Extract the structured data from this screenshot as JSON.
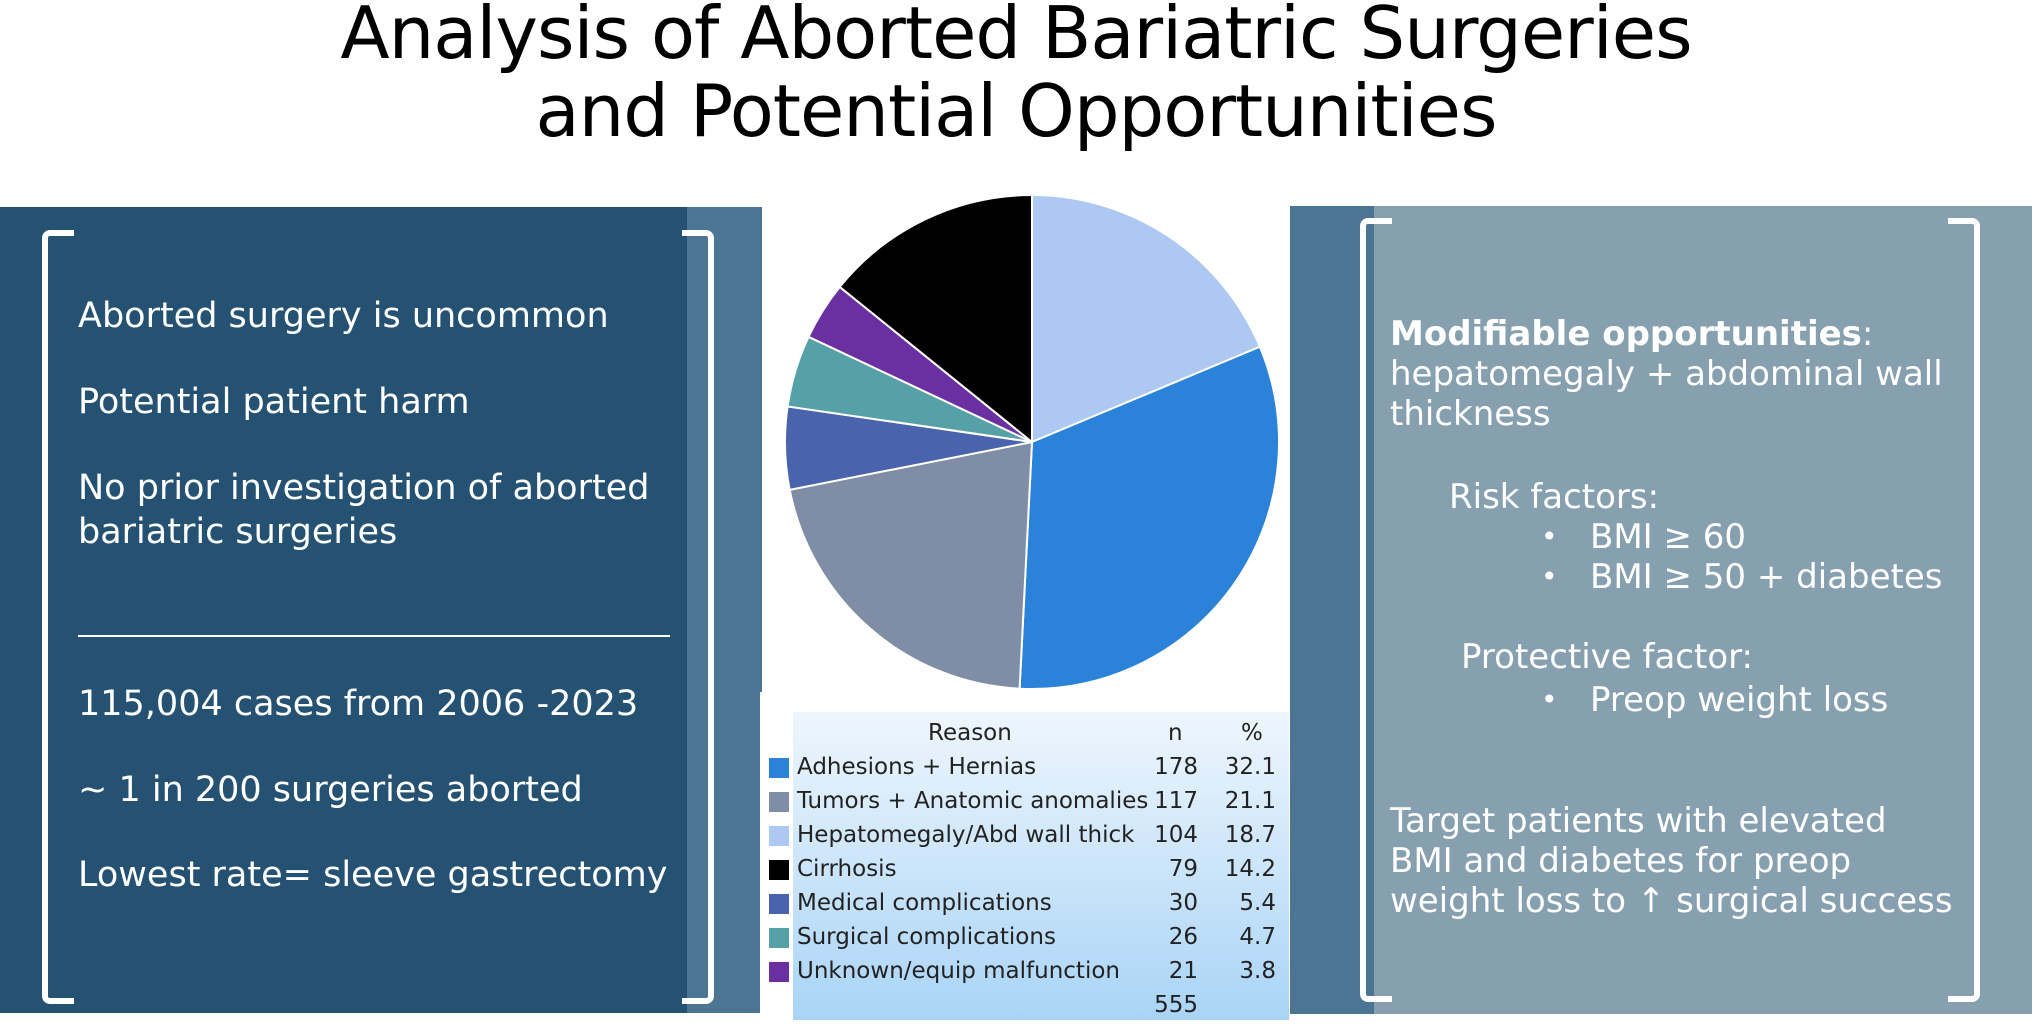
{
  "title": {
    "line1": "Analysis of Aborted Bariatric Surgeries",
    "line2": "and Potential Opportunities"
  },
  "left_panel": {
    "items": [
      "Aborted surgery is uncommon",
      "Potential patient harm",
      "No prior investigation of aborted",
      "bariatric surgeries",
      "115,004 cases from 2006 -2023",
      "~ 1 in 200 surgeries aborted",
      "Lowest rate= sleeve gastrectomy"
    ]
  },
  "right_panel": {
    "modifiable_bold": "Modifiable opportunities",
    "modifiable_colon": ":",
    "modifiable_line2": "hepatomegaly + abdominal wall",
    "modifiable_line3": "thickness",
    "risk_header": "Risk factors:",
    "risk_items": [
      "BMI ≥ 60",
      "BMI ≥ 50 + diabetes"
    ],
    "protective_header": "Protective factor:",
    "protective_items": [
      "Preop weight loss"
    ],
    "bullet_char": "•",
    "target_lines": [
      "Target patients with elevated",
      "BMI and diabetes for preop",
      "weight loss to ↑ surgical success"
    ]
  },
  "chart_data": {
    "type": "pie",
    "table_headers": {
      "reason": "Reason",
      "n": "n",
      "pct": "%"
    },
    "total": "555",
    "series": [
      {
        "name": "Adhesions + Hernias",
        "n": "178",
        "pct": "32.1",
        "value": 32.1,
        "color": "#2b82d9"
      },
      {
        "name": "Tumors + Anatomic anomalies",
        "n": "117",
        "pct": "21.1",
        "value": 21.1,
        "color": "#7f8ea6"
      },
      {
        "name": "Hepatomegaly/Abd wall thick",
        "n": "104",
        "pct": "18.7",
        "value": 18.7,
        "color": "#acc8f3"
      },
      {
        "name": "Cirrhosis",
        "n": "79",
        "pct": "14.2",
        "value": 14.2,
        "color": "#000000"
      },
      {
        "name": "Medical complications",
        "n": "30",
        "pct": "5.4",
        "value": 5.4,
        "color": "#4a63ad"
      },
      {
        "name": "Surgical complications",
        "n": "26",
        "pct": "4.7",
        "value": 4.7,
        "color": "#56a0a8"
      },
      {
        "name": "Unknown/equip malfunction",
        "n": "21",
        "pct": "3.8",
        "value": 3.8,
        "color": "#6a2fa0"
      }
    ],
    "slice_order": [
      2,
      0,
      1,
      4,
      5,
      6,
      3
    ]
  }
}
